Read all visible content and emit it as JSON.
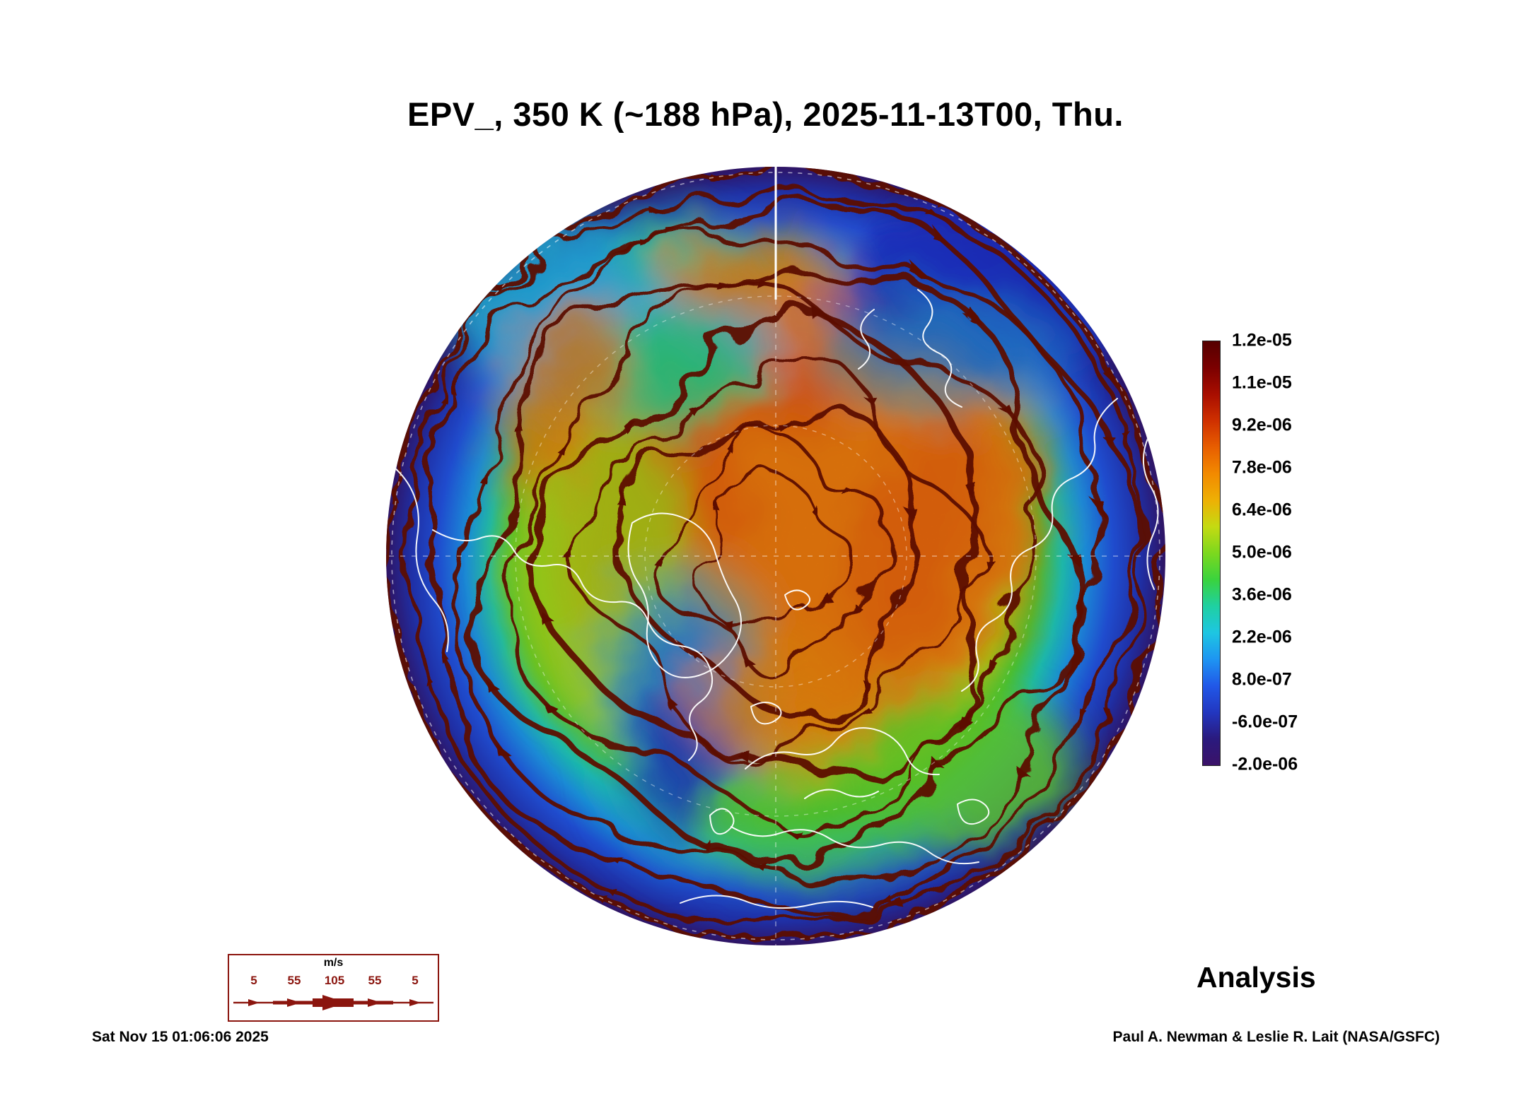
{
  "title": "EPV_, 350 K (~188 hPa), 2025-11-13T00, Thu.",
  "colorbar": {
    "ticks": [
      "1.2e-05",
      "1.1e-05",
      "9.2e-06",
      "7.8e-06",
      "6.4e-06",
      "5.0e-06",
      "3.6e-06",
      "2.2e-06",
      "8.0e-07",
      "-6.0e-07",
      "-2.0e-06"
    ],
    "colors": [
      "#550000",
      "#7b0000",
      "#a80e00",
      "#cf3000",
      "#e85e00",
      "#f28a00",
      "#eeb004",
      "#c4da12",
      "#7cd81e",
      "#3ad33e",
      "#1fd0a2",
      "#1ec6e2",
      "#1e95f2",
      "#2158e8",
      "#2237c0",
      "#2a1a7e",
      "#3b1268"
    ]
  },
  "wind_legend": {
    "unit": "m/s",
    "values": [
      "5",
      "55",
      "105",
      "55",
      "5"
    ]
  },
  "footer": {
    "timestamp": "Sat Nov 15 01:06:06 2025",
    "analysis_label": "Analysis",
    "credit": "Paul A. Newman & Leslie R. Lait (NASA/GSFC)"
  },
  "chart_data": {
    "type": "heatmap",
    "title": "EPV_, 350 K (~188 hPa), 2025-11-13T00, Thu.",
    "projection": "north polar stereographic, pole centered, circular domain",
    "colorbar_tick_values": [
      1.2e-05,
      1.1e-05,
      9.2e-06,
      7.8e-06,
      6.4e-06,
      5e-06,
      3.6e-06,
      2.2e-06,
      8e-07,
      -6e-07,
      -2e-06
    ],
    "colorbar_range": [
      -2e-06,
      1.2e-05
    ],
    "legend_position": "right",
    "wind_scale_mps": [
      5,
      55,
      105,
      55,
      5
    ],
    "overlays": [
      "dark-red wind streamlines with arrowheads",
      "white coastlines",
      "white dashed latitude-longitude graticule"
    ],
    "field_summary": "High EPV (orange/red, ~6e-06 to 1.2e-05) covers the polar cap and mid-latitudes; low EPV (blue/purple, below ~1e-06) rings the equatorward rim; cyan/green lobes sit over the upper-left and lower-right sectors and a narrow low-EPV trough intrudes toward the pole below-left of center"
  }
}
